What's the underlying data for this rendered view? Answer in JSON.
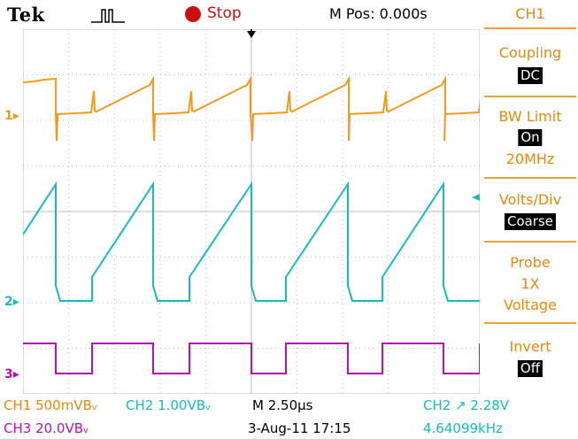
{
  "header": {
    "brand": "Tek",
    "trigger_status": "Stop",
    "m_pos": "M Pos: 0.000s"
  },
  "channel_markers": {
    "ch1": "1",
    "ch2": "2",
    "ch3": "3"
  },
  "menu": {
    "title": "CH1",
    "coupling_label": "Coupling",
    "coupling_value": "DC",
    "bw_limit_label": "BW Limit",
    "bw_limit_value": "On",
    "bw_limit_freq": "20MHz",
    "volts_div_label": "Volts/Div",
    "volts_div_value": "Coarse",
    "probe_label": "Probe",
    "probe_gain": "1X",
    "probe_type": "Voltage",
    "invert_label": "Invert",
    "invert_value": "Off"
  },
  "status": {
    "ch1_scale": "CH1  500mVBᵥ",
    "ch2_scale": "CH2  1.00VBᵥ",
    "ch3_scale": "CH3  20.0VBᵥ",
    "timebase": "M 2.50μs",
    "date": "3-Aug-11 17:15",
    "trigger": "CH2 ↗ 2.28V",
    "frequency": "4.64099kHz"
  },
  "colors": {
    "ch1": "#f39a1c",
    "ch2": "#19b9bd",
    "ch3": "#b214b0",
    "grid": "#bcbcbc",
    "accent": "#e08a12"
  }
}
